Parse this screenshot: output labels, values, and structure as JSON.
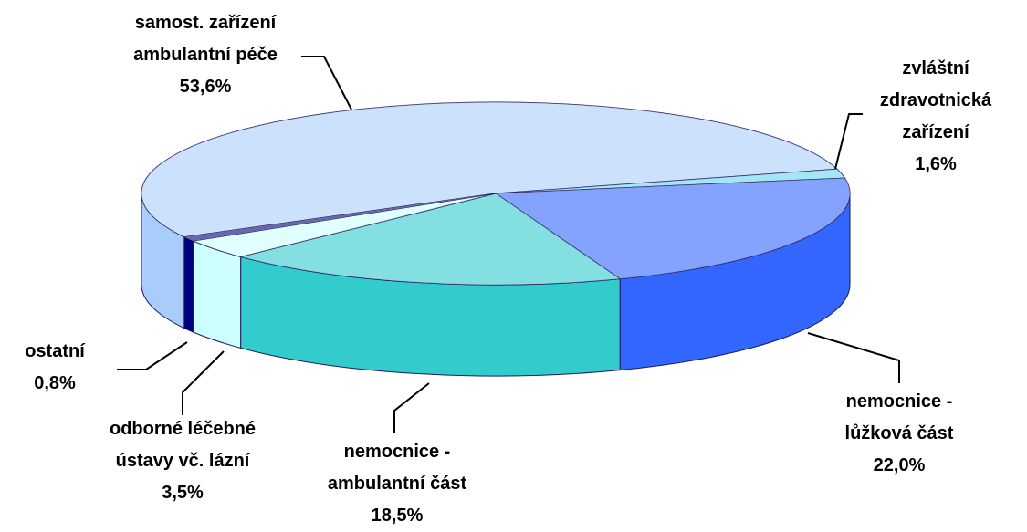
{
  "chart_data": {
    "type": "pie",
    "categories": [
      "samost. zařízení ambulantní péče",
      "zvláštní zdravotnická zařízení",
      "nemocnice - lůžková část",
      "nemocnice - ambulantní část",
      "odborné léčebné ústavy vč. lázní",
      "ostatní"
    ],
    "values": [
      53.6,
      1.6,
      22.0,
      18.5,
      3.5,
      0.8
    ],
    "value_labels": [
      "53,6%",
      "1,6%",
      "22,0%",
      "18,5%",
      "3,5%",
      "0,8%"
    ],
    "colors": [
      "#a8cdfb",
      "#66d6f4",
      "#3366ff",
      "#33cccc",
      "#ccffff",
      "#000080"
    ]
  }
}
